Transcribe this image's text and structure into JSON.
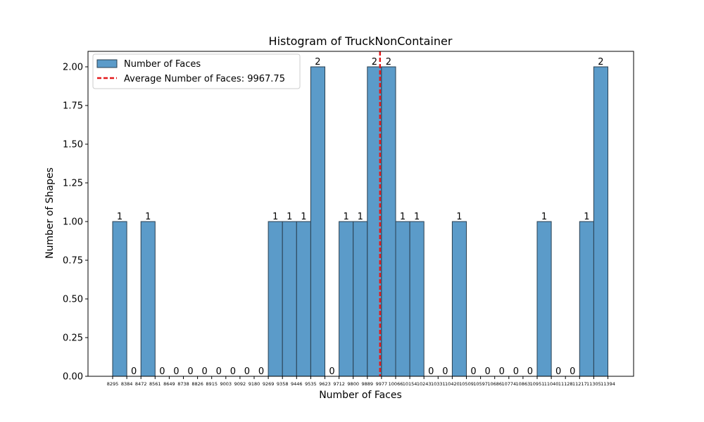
{
  "chart_data": {
    "type": "bar",
    "title": "Histogram of TruckNonContainer",
    "xlabel": "Number of Faces",
    "ylabel": "Number of Shapes",
    "ylim": [
      0,
      2.1
    ],
    "yticks": [
      "0.00",
      "0.25",
      "0.50",
      "0.75",
      "1.00",
      "1.25",
      "1.50",
      "1.75",
      "2.00"
    ],
    "xticks": [
      "8295",
      "8384",
      "8472",
      "8561",
      "8649",
      "8738",
      "8826",
      "8915",
      "9003",
      "9092",
      "9180",
      "9269",
      "9358",
      "9446",
      "9535",
      "9623",
      "9712",
      "9800",
      "9889",
      "9977",
      "10066",
      "10154",
      "10243",
      "10331",
      "10420",
      "10509",
      "10597",
      "10686",
      "10774",
      "10863",
      "10951",
      "11040",
      "11128",
      "11217",
      "11305",
      "11394"
    ],
    "bin_edges": [
      8295,
      8384,
      8472,
      8561,
      8649,
      8738,
      8826,
      8915,
      9003,
      9092,
      9180,
      9269,
      9358,
      9446,
      9535,
      9623,
      9712,
      9800,
      9889,
      9977,
      10066,
      10154,
      10243,
      10331,
      10420,
      10509,
      10597,
      10686,
      10774,
      10863,
      10951,
      11040,
      11128,
      11217,
      11305,
      11394
    ],
    "counts": [
      1,
      0,
      1,
      0,
      0,
      0,
      0,
      0,
      0,
      0,
      0,
      1,
      1,
      1,
      2,
      0,
      1,
      1,
      2,
      2,
      1,
      1,
      0,
      0,
      1,
      0,
      0,
      0,
      0,
      0,
      1,
      0,
      0,
      1,
      2
    ],
    "average": 9967.75,
    "grid": false,
    "legend_position": "upper-left",
    "series": [
      {
        "name": "Number of Faces",
        "color": "#5b9bc9",
        "edge_color": "#2a3f50"
      }
    ],
    "reference_line": {
      "name": "Average Number of Faces: 9967.75",
      "value": 9967.75,
      "color": "#e41a1c",
      "style": "dashed"
    }
  }
}
